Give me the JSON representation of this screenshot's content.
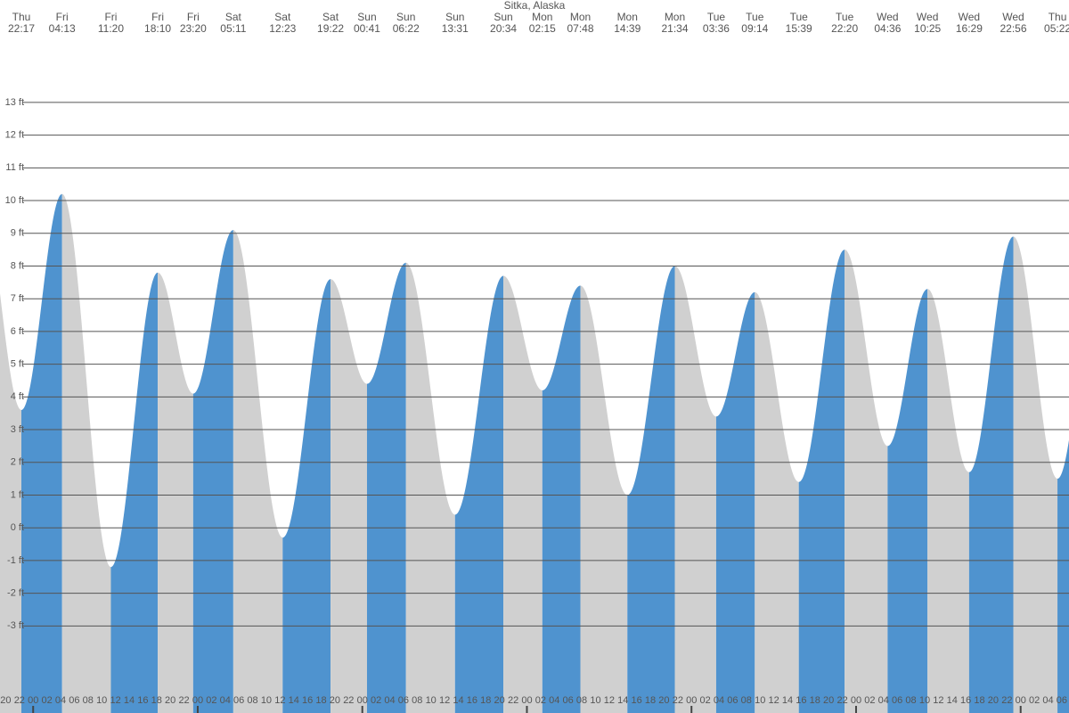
{
  "chart_data": {
    "type": "tide",
    "title": "Sitka, Alaska",
    "days": [
      "Thu",
      "Fri",
      "Fri",
      "Fri",
      "Fri",
      "Sat",
      "Sat",
      "Sat",
      "Sun",
      "Sun",
      "Sun",
      "Sun",
      "Mon",
      "Mon",
      "Mon",
      "Mon",
      "Tue",
      "Tue",
      "Tue",
      "Tue",
      "Wed",
      "Wed",
      "Wed",
      "Wed",
      "Thu"
    ],
    "times": [
      "22:17",
      "04:13",
      "11:20",
      "18:10",
      "23:20",
      "05:11",
      "12:23",
      "19:22",
      "00:41",
      "06:22",
      "13:31",
      "20:34",
      "02:15",
      "07:48",
      "14:39",
      "21:34",
      "03:36",
      "09:14",
      "15:39",
      "22:20",
      "04:36",
      "10:25",
      "16:29",
      "22:56",
      "05:22"
    ],
    "x": [
      22.283,
      28.217,
      35.333,
      42.167,
      47.333,
      53.183,
      60.383,
      67.367,
      72.683,
      78.367,
      85.517,
      92.567,
      98.25,
      103.8,
      110.65,
      117.567,
      123.6,
      129.233,
      135.65,
      142.333,
      148.6,
      154.417,
      160.483,
      166.933,
      173.367
    ],
    "values": [
      3.6,
      10.2,
      -1.2,
      7.8,
      4.1,
      9.1,
      -0.3,
      7.6,
      4.4,
      8.1,
      0.4,
      7.7,
      4.2,
      7.4,
      1.0,
      8.0,
      3.4,
      7.2,
      1.4,
      8.5,
      2.5,
      7.3,
      1.7,
      8.9,
      1.5
    ],
    "rising_color": "#4f93cf",
    "falling_color": "#d0d0d0",
    "xlim": [
      19.165,
      175.05
    ],
    "xticks": [
      {
        "value": 20,
        "label": "20"
      },
      {
        "value": 22,
        "label": "22"
      },
      {
        "value": 24,
        "label": "00"
      },
      {
        "value": 26,
        "label": "02"
      },
      {
        "value": 28,
        "label": "04"
      },
      {
        "value": 30,
        "label": "06"
      },
      {
        "value": 32,
        "label": "08"
      },
      {
        "value": 34,
        "label": "10"
      },
      {
        "value": 36,
        "label": "12"
      },
      {
        "value": 38,
        "label": "14"
      },
      {
        "value": 40,
        "label": "16"
      },
      {
        "value": 42,
        "label": "18"
      },
      {
        "value": 44,
        "label": "20"
      },
      {
        "value": 46,
        "label": "22"
      },
      {
        "value": 48,
        "label": "00"
      },
      {
        "value": 50,
        "label": "02"
      },
      {
        "value": 52,
        "label": "04"
      },
      {
        "value": 54,
        "label": "06"
      },
      {
        "value": 56,
        "label": "08"
      },
      {
        "value": 58,
        "label": "10"
      },
      {
        "value": 60,
        "label": "12"
      },
      {
        "value": 62,
        "label": "14"
      },
      {
        "value": 64,
        "label": "16"
      },
      {
        "value": 66,
        "label": "18"
      },
      {
        "value": 68,
        "label": "20"
      },
      {
        "value": 70,
        "label": "22"
      },
      {
        "value": 72,
        "label": "00"
      },
      {
        "value": 74,
        "label": "02"
      },
      {
        "value": 76,
        "label": "04"
      },
      {
        "value": 78,
        "label": "06"
      },
      {
        "value": 80,
        "label": "08"
      },
      {
        "value": 82,
        "label": "10"
      },
      {
        "value": 84,
        "label": "12"
      },
      {
        "value": 86,
        "label": "14"
      },
      {
        "value": 88,
        "label": "16"
      },
      {
        "value": 90,
        "label": "18"
      },
      {
        "value": 92,
        "label": "20"
      },
      {
        "value": 94,
        "label": "22"
      },
      {
        "value": 96,
        "label": "00"
      },
      {
        "value": 98,
        "label": "02"
      },
      {
        "value": 100,
        "label": "04"
      },
      {
        "value": 102,
        "label": "06"
      },
      {
        "value": 104,
        "label": "08"
      },
      {
        "value": 106,
        "label": "10"
      },
      {
        "value": 108,
        "label": "12"
      },
      {
        "value": 110,
        "label": "14"
      },
      {
        "value": 112,
        "label": "16"
      },
      {
        "value": 114,
        "label": "18"
      },
      {
        "value": 116,
        "label": "20"
      },
      {
        "value": 118,
        "label": "22"
      },
      {
        "value": 120,
        "label": "00"
      },
      {
        "value": 122,
        "label": "02"
      },
      {
        "value": 124,
        "label": "04"
      },
      {
        "value": 126,
        "label": "06"
      },
      {
        "value": 128,
        "label": "08"
      },
      {
        "value": 130,
        "label": "10"
      },
      {
        "value": 132,
        "label": "12"
      },
      {
        "value": 134,
        "label": "14"
      },
      {
        "value": 136,
        "label": "16"
      },
      {
        "value": 138,
        "label": "18"
      },
      {
        "value": 140,
        "label": "20"
      },
      {
        "value": 142,
        "label": "22"
      },
      {
        "value": 144,
        "label": "00"
      },
      {
        "value": 146,
        "label": "02"
      },
      {
        "value": 148,
        "label": "04"
      },
      {
        "value": 150,
        "label": "06"
      },
      {
        "value": 152,
        "label": "08"
      },
      {
        "value": 154,
        "label": "10"
      },
      {
        "value": 156,
        "label": "12"
      },
      {
        "value": 158,
        "label": "14"
      },
      {
        "value": 160,
        "label": "16"
      },
      {
        "value": 162,
        "label": "18"
      },
      {
        "value": 164,
        "label": "20"
      },
      {
        "value": 166,
        "label": "22"
      },
      {
        "value": 168,
        "label": "00"
      },
      {
        "value": 170,
        "label": "02"
      },
      {
        "value": 172,
        "label": "04"
      },
      {
        "value": 174,
        "label": "06"
      }
    ],
    "ylim": [
      -5.66,
      16.13
    ],
    "yticks": [
      {
        "value": 13,
        "label": "13 ft"
      },
      {
        "value": 12,
        "label": "12 ft"
      },
      {
        "value": 11,
        "label": "11 ft"
      },
      {
        "value": 10,
        "label": "10 ft"
      },
      {
        "value": 9,
        "label": "9 ft"
      },
      {
        "value": 8,
        "label": "8 ft"
      },
      {
        "value": 7,
        "label": "7 ft"
      },
      {
        "value": 6,
        "label": "6 ft"
      },
      {
        "value": 5,
        "label": "5 ft"
      },
      {
        "value": 4,
        "label": "4 ft"
      },
      {
        "value": 3,
        "label": "3 ft"
      },
      {
        "value": 2,
        "label": "2 ft"
      },
      {
        "value": 1,
        "label": "1 ft"
      },
      {
        "value": 0,
        "label": "0 ft"
      },
      {
        "value": -1,
        "label": "-1 ft"
      },
      {
        "value": -2,
        "label": "-2 ft"
      },
      {
        "value": -3,
        "label": "-3 ft"
      }
    ],
    "grid": true
  }
}
